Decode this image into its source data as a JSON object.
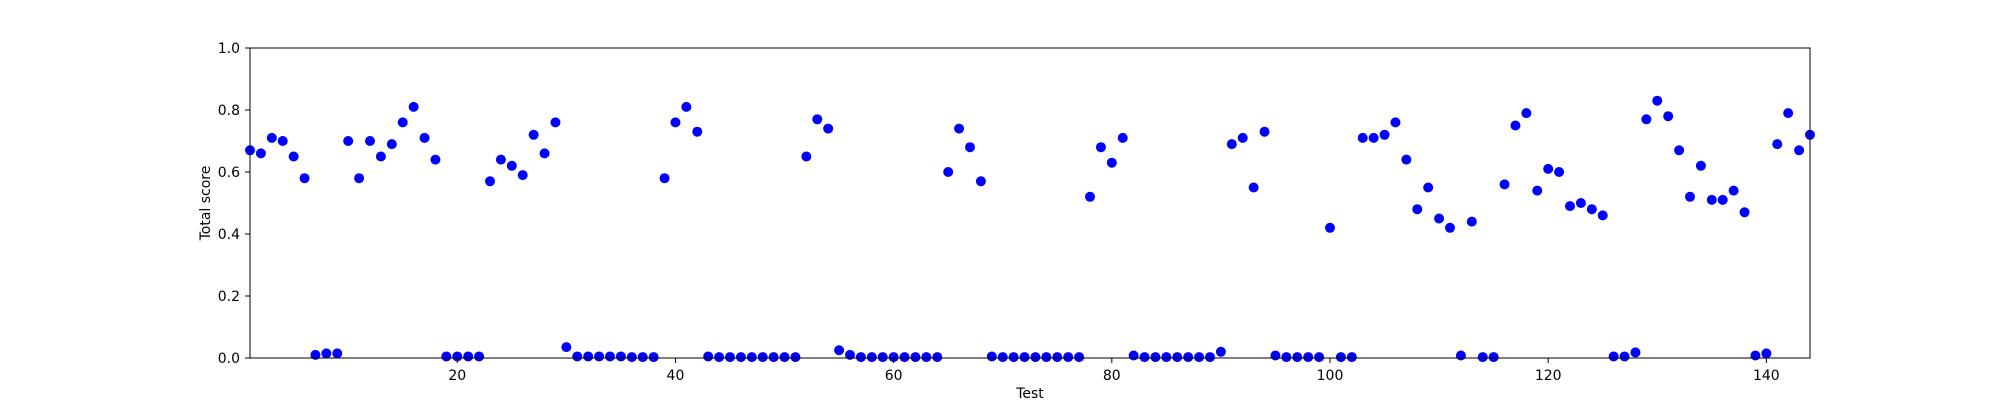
{
  "chart_data": {
    "type": "scatter",
    "title": "",
    "xlabel": "Test",
    "ylabel": "Total score",
    "xlim": [
      1,
      144
    ],
    "ylim": [
      0.0,
      1.0
    ],
    "grid": false,
    "legend": "none",
    "marker_color": "#0000ff",
    "x_ticks": [
      {
        "value": 20,
        "label": "20"
      },
      {
        "value": 40,
        "label": "40"
      },
      {
        "value": 60,
        "label": "60"
      },
      {
        "value": 80,
        "label": "80"
      },
      {
        "value": 100,
        "label": "100"
      },
      {
        "value": 120,
        "label": "120"
      },
      {
        "value": 140,
        "label": "140"
      }
    ],
    "y_ticks": [
      {
        "value": 0.0,
        "label": "0.0"
      },
      {
        "value": 0.2,
        "label": "0.2"
      },
      {
        "value": 0.4,
        "label": "0.4"
      },
      {
        "value": 0.6,
        "label": "0.6"
      },
      {
        "value": 0.8,
        "label": "0.8"
      },
      {
        "value": 1.0,
        "label": "1.0"
      }
    ],
    "series": [
      {
        "points": [
          [
            1,
            0.67
          ],
          [
            2,
            0.66
          ],
          [
            3,
            0.71
          ],
          [
            4,
            0.7
          ],
          [
            5,
            0.65
          ],
          [
            6,
            0.58
          ],
          [
            7,
            0.01
          ],
          [
            8,
            0.015
          ],
          [
            9,
            0.015
          ],
          [
            10,
            0.7
          ],
          [
            11,
            0.58
          ],
          [
            12,
            0.7
          ],
          [
            13,
            0.65
          ],
          [
            14,
            0.69
          ],
          [
            15,
            0.76
          ],
          [
            16,
            0.81
          ],
          [
            17,
            0.71
          ],
          [
            18,
            0.64
          ],
          [
            19,
            0.005
          ],
          [
            20,
            0.005
          ],
          [
            21,
            0.005
          ],
          [
            22,
            0.005
          ],
          [
            23,
            0.57
          ],
          [
            24,
            0.64
          ],
          [
            25,
            0.62
          ],
          [
            26,
            0.59
          ],
          [
            27,
            0.72
          ],
          [
            28,
            0.66
          ],
          [
            29,
            0.76
          ],
          [
            30,
            0.035
          ],
          [
            31,
            0.005
          ],
          [
            32,
            0.005
          ],
          [
            33,
            0.005
          ],
          [
            34,
            0.005
          ],
          [
            35,
            0.005
          ],
          [
            36,
            0.003
          ],
          [
            37,
            0.003
          ],
          [
            38,
            0.003
          ],
          [
            39,
            0.58
          ],
          [
            40,
            0.76
          ],
          [
            41,
            0.81
          ],
          [
            42,
            0.73
          ],
          [
            43,
            0.005
          ],
          [
            44,
            0.003
          ],
          [
            45,
            0.003
          ],
          [
            46,
            0.003
          ],
          [
            47,
            0.003
          ],
          [
            48,
            0.003
          ],
          [
            49,
            0.003
          ],
          [
            50,
            0.003
          ],
          [
            51,
            0.003
          ],
          [
            52,
            0.65
          ],
          [
            53,
            0.77
          ],
          [
            54,
            0.74
          ],
          [
            55,
            0.025
          ],
          [
            56,
            0.01
          ],
          [
            57,
            0.003
          ],
          [
            58,
            0.003
          ],
          [
            59,
            0.003
          ],
          [
            60,
            0.003
          ],
          [
            61,
            0.003
          ],
          [
            62,
            0.003
          ],
          [
            63,
            0.003
          ],
          [
            64,
            0.003
          ],
          [
            65,
            0.6
          ],
          [
            66,
            0.74
          ],
          [
            67,
            0.68
          ],
          [
            68,
            0.57
          ],
          [
            69,
            0.005
          ],
          [
            70,
            0.003
          ],
          [
            71,
            0.003
          ],
          [
            72,
            0.003
          ],
          [
            73,
            0.003
          ],
          [
            74,
            0.003
          ],
          [
            75,
            0.003
          ],
          [
            76,
            0.003
          ],
          [
            77,
            0.003
          ],
          [
            78,
            0.52
          ],
          [
            79,
            0.68
          ],
          [
            80,
            0.63
          ],
          [
            81,
            0.71
          ],
          [
            82,
            0.008
          ],
          [
            83,
            0.003
          ],
          [
            84,
            0.003
          ],
          [
            85,
            0.003
          ],
          [
            86,
            0.003
          ],
          [
            87,
            0.003
          ],
          [
            88,
            0.003
          ],
          [
            89,
            0.003
          ],
          [
            90,
            0.02
          ],
          [
            91,
            0.69
          ],
          [
            92,
            0.71
          ],
          [
            93,
            0.55
          ],
          [
            94,
            0.73
          ],
          [
            95,
            0.008
          ],
          [
            96,
            0.003
          ],
          [
            97,
            0.003
          ],
          [
            98,
            0.003
          ],
          [
            99,
            0.003
          ],
          [
            100,
            0.42
          ],
          [
            101,
            0.003
          ],
          [
            102,
            0.003
          ],
          [
            103,
            0.71
          ],
          [
            104,
            0.71
          ],
          [
            105,
            0.72
          ],
          [
            106,
            0.76
          ],
          [
            107,
            0.64
          ],
          [
            108,
            0.48
          ],
          [
            109,
            0.55
          ],
          [
            110,
            0.45
          ],
          [
            111,
            0.42
          ],
          [
            112,
            0.008
          ],
          [
            113,
            0.44
          ],
          [
            114,
            0.003
          ],
          [
            115,
            0.003
          ],
          [
            116,
            0.56
          ],
          [
            117,
            0.75
          ],
          [
            118,
            0.79
          ],
          [
            119,
            0.54
          ],
          [
            120,
            0.61
          ],
          [
            121,
            0.6
          ],
          [
            122,
            0.49
          ],
          [
            123,
            0.5
          ],
          [
            124,
            0.48
          ],
          [
            125,
            0.46
          ],
          [
            126,
            0.005
          ],
          [
            127,
            0.005
          ],
          [
            128,
            0.018
          ],
          [
            129,
            0.77
          ],
          [
            130,
            0.83
          ],
          [
            131,
            0.78
          ],
          [
            132,
            0.67
          ],
          [
            133,
            0.52
          ],
          [
            134,
            0.62
          ],
          [
            135,
            0.51
          ],
          [
            136,
            0.51
          ],
          [
            137,
            0.54
          ],
          [
            138,
            0.47
          ],
          [
            139,
            0.008
          ],
          [
            140,
            0.015
          ],
          [
            141,
            0.69
          ],
          [
            142,
            0.79
          ],
          [
            143,
            0.67
          ],
          [
            144,
            0.72
          ]
        ]
      }
    ]
  }
}
